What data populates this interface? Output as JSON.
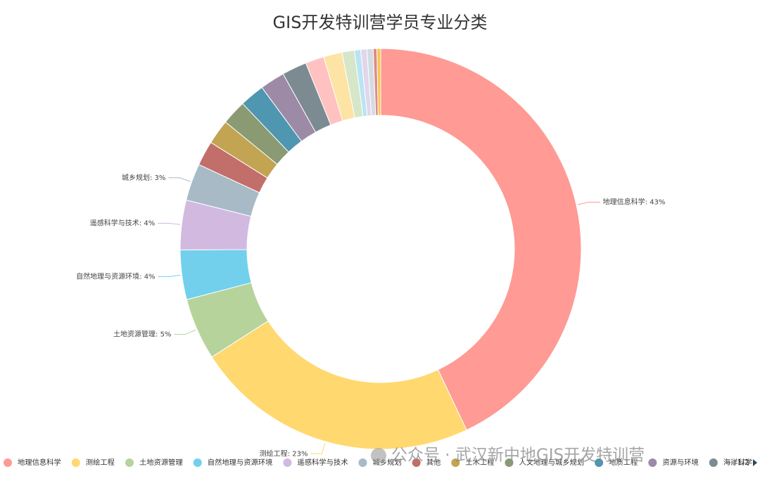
{
  "chart_data": {
    "type": "donut",
    "title": "GIS开发特训营学员专业分类",
    "categories": [
      "地理信息科学",
      "测绘工程",
      "土地资源管理",
      "自然地理与资源环境",
      "遥感科学与技术",
      "城乡规划",
      "其他",
      "土木工程",
      "人文地理与城乡规划",
      "地质工程",
      "资源与环境",
      "海洋科学",
      null,
      null,
      null,
      null,
      null,
      null,
      null,
      null
    ],
    "values": [
      43,
      23,
      5,
      4,
      4,
      3,
      2,
      2,
      2,
      2,
      2,
      2,
      1.5,
      1.5,
      1,
      0.5,
      0.5,
      0.5,
      0.3,
      0.3
    ],
    "data_labels": [
      "地理信息科学: 43%",
      "测绘工程: 23%",
      "土地资源管理: 5%",
      "自然地理与资源环境: 4%",
      "遥感科学与技术: 4%",
      "城乡规划: 3%",
      null,
      null,
      null,
      null,
      null,
      null,
      null,
      null,
      null,
      null,
      null,
      null,
      null,
      null
    ],
    "colors": [
      "#ff9a94",
      "#ffd86f",
      "#b6d39c",
      "#72d0ec",
      "#d1b9e0",
      "#a7bac6",
      "#c26e6a",
      "#c2a452",
      "#8a9a72",
      "#4f96b0",
      "#9c8aa6",
      "#7b8b91",
      "#ffc2c0",
      "#fde4a4",
      "#d6e6c9",
      "#b9e4f4",
      "#e1d6eb",
      "#d2dce3",
      "#e08a86",
      "#f3c84f"
    ],
    "legend_page": "1/2",
    "watermark": "公众号 · 武汉新中地GIS开发特训营"
  }
}
